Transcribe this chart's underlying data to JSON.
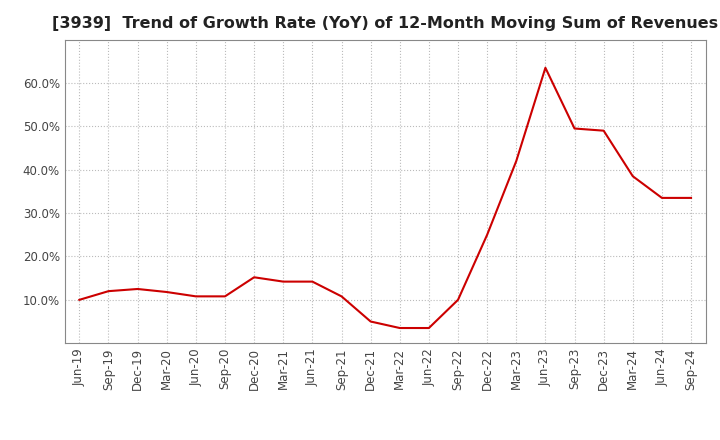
{
  "title": "[3939]  Trend of Growth Rate (YoY) of 12-Month Moving Sum of Revenues",
  "x_labels": [
    "Jun-19",
    "Sep-19",
    "Dec-19",
    "Mar-20",
    "Jun-20",
    "Sep-20",
    "Dec-20",
    "Mar-21",
    "Jun-21",
    "Sep-21",
    "Dec-21",
    "Mar-22",
    "Jun-22",
    "Sep-22",
    "Dec-22",
    "Mar-23",
    "Jun-23",
    "Sep-23",
    "Dec-23",
    "Mar-24",
    "Jun-24",
    "Sep-24"
  ],
  "y_values": [
    0.1,
    0.12,
    0.125,
    0.118,
    0.108,
    0.108,
    0.152,
    0.142,
    0.142,
    0.108,
    0.05,
    0.035,
    0.035,
    0.1,
    0.25,
    0.42,
    0.635,
    0.495,
    0.49,
    0.385,
    0.335,
    0.335
  ],
  "line_color": "#cc0000",
  "background_color": "#ffffff",
  "plot_bg_color": "#ffffff",
  "grid_color": "#bbbbbb",
  "title_color": "#222222",
  "ylim_min": 0.0,
  "ylim_max": 0.7,
  "yticks": [
    0.1,
    0.2,
    0.3,
    0.4,
    0.5,
    0.6
  ],
  "title_fontsize": 11.5,
  "tick_fontsize": 8.5
}
